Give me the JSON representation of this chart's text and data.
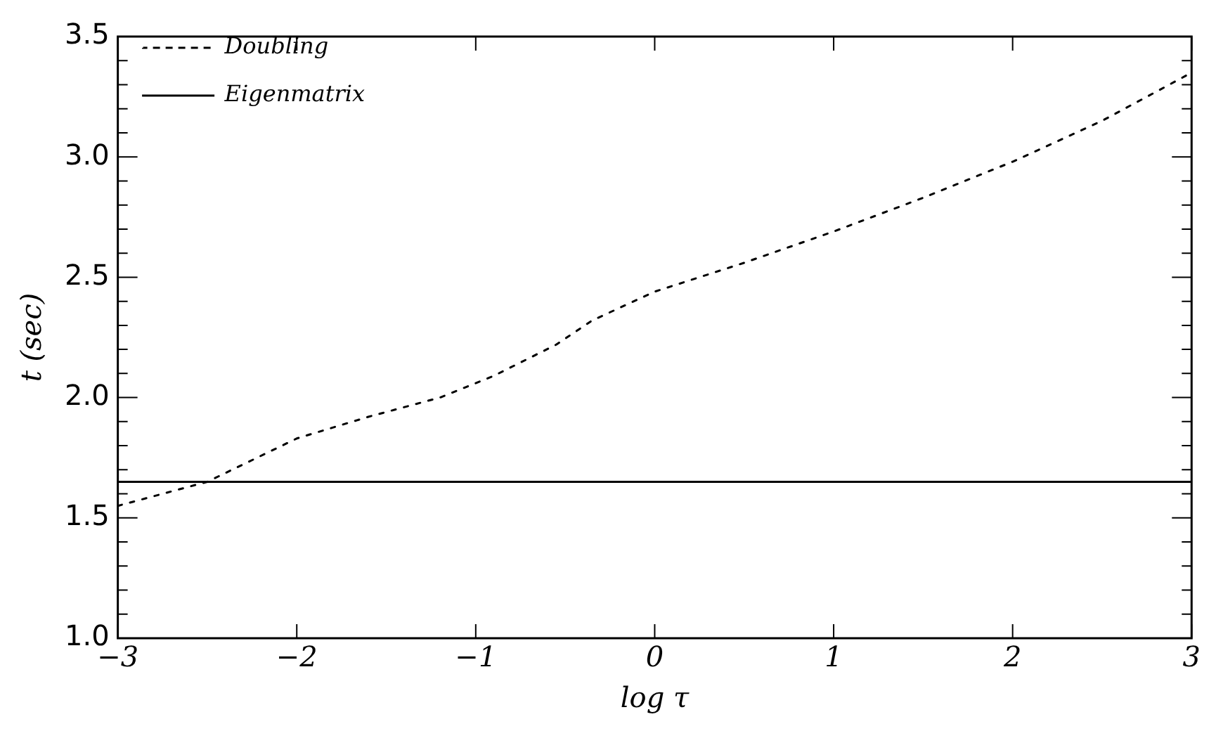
{
  "chart_data": {
    "type": "line",
    "xlabel": "log τ",
    "ylabel": "t (sec)",
    "xlim": [
      -3,
      3
    ],
    "xticks": [
      -3,
      -2,
      -1,
      0,
      1,
      2,
      3
    ],
    "ylim": [
      1.0,
      3.5
    ],
    "yticks": [
      {
        "value": 1,
        "label": "1.0"
      },
      {
        "value": 1.1,
        "label": null
      },
      {
        "value": 1.2,
        "label": null
      },
      {
        "value": 1.3,
        "label": null
      },
      {
        "value": 1.4,
        "label": null
      },
      1.5,
      {
        "value": 1.6,
        "label": null
      },
      {
        "value": 1.7,
        "label": null
      },
      {
        "value": 1.8,
        "label": null
      },
      {
        "value": 1.9,
        "label": null
      },
      {
        "value": 2,
        "label": "2.0"
      },
      {
        "value": 2.1,
        "label": null
      },
      {
        "value": 2.2,
        "label": null
      },
      {
        "value": 2.3,
        "label": null
      },
      {
        "value": 2.4,
        "label": null
      },
      2.5,
      {
        "value": 2.6,
        "label": null
      },
      {
        "value": 2.7,
        "label": null
      },
      {
        "value": 2.8,
        "label": null
      },
      {
        "value": 2.9,
        "label": null
      },
      {
        "value": 3,
        "label": "3.0"
      },
      {
        "value": 3.1,
        "label": null
      },
      {
        "value": 3.2,
        "label": null
      },
      {
        "value": 3.3,
        "label": null
      },
      {
        "value": 3.4,
        "label": null
      },
      3.5
    ],
    "legend": "top left",
    "grid": false,
    "marker": "none",
    "series": [
      {
        "name": "Doubling",
        "color": "#000000",
        "line_style": "dotted",
        "x": [
          -3,
          -2.5,
          -2,
          -1.6,
          -1.2,
          -0.9,
          -0.55,
          -0.35,
          0,
          0.5,
          1,
          1.5,
          2,
          2.5,
          3
        ],
        "values": [
          1.55,
          1.65,
          1.83,
          1.92,
          2.0,
          2.09,
          2.22,
          2.32,
          2.44,
          2.56,
          2.69,
          2.83,
          2.98,
          3.15,
          3.35
        ]
      },
      {
        "name": "Eigenmatrix",
        "color": "#000000",
        "line_style": "solid",
        "x": [
          -3,
          3
        ],
        "values": [
          1.65,
          1.65
        ]
      }
    ]
  }
}
